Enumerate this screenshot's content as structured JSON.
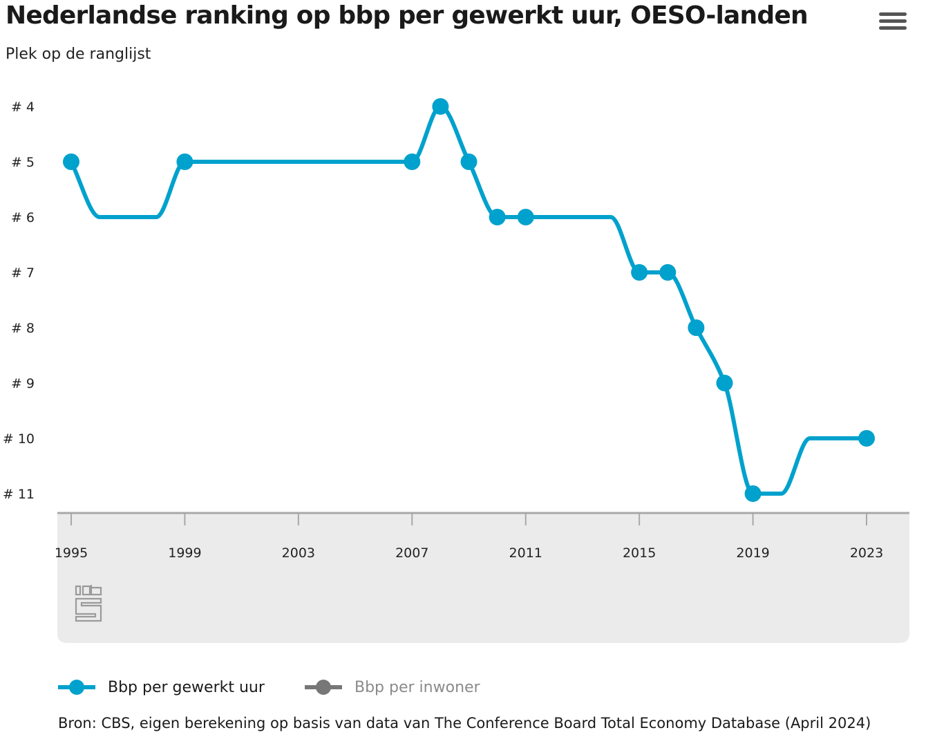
{
  "title": "Nederlandse ranking op bbp per gewerkt uur, OESO-landen",
  "menu_icon": "hamburger-menu-icon",
  "logo_icon": "cbs-logo-icon",
  "source": "Bron: CBS, eigen berekening op basis van data van The Conference Board Total Economy Database (April 2024)",
  "chart_data": {
    "type": "line",
    "title": "Nederlandse ranking op bbp per gewerkt uur, OESO-landen",
    "ylabel": "Plek op de ranglijst",
    "y_reversed": true,
    "ylim": [
      4,
      11
    ],
    "y_ticks": [
      4,
      5,
      6,
      7,
      8,
      9,
      10,
      11
    ],
    "y_tick_labels": [
      "# 4",
      "# 5",
      "# 6",
      "# 7",
      "# 8",
      "# 9",
      "# 10",
      "# 11"
    ],
    "xlim": [
      1995,
      2023
    ],
    "x_ticks": [
      1995,
      1999,
      2003,
      2007,
      2011,
      2015,
      2019,
      2023
    ],
    "x_tick_labels": [
      "1995",
      "1999",
      "2003",
      "2007",
      "2011",
      "2015",
      "2019",
      "2023"
    ],
    "grid": false,
    "legend_position": "bottom-left",
    "series": [
      {
        "name": "Bbp per gewerkt uur",
        "color": "#00a1cd",
        "visible": true,
        "x": [
          1995,
          1996,
          1997,
          1998,
          1999,
          2000,
          2001,
          2002,
          2003,
          2004,
          2005,
          2006,
          2007,
          2008,
          2009,
          2010,
          2011,
          2012,
          2013,
          2014,
          2015,
          2016,
          2017,
          2018,
          2019,
          2020,
          2021,
          2022,
          2023
        ],
        "y": [
          5,
          6,
          6,
          6,
          5,
          5,
          5,
          5,
          5,
          5,
          5,
          5,
          5,
          4,
          5,
          6,
          6,
          6,
          6,
          6,
          7,
          7,
          8,
          9,
          11,
          11,
          10,
          10,
          10
        ],
        "markers": [
          1995,
          1999,
          2007,
          2008,
          2009,
          2010,
          2011,
          2015,
          2016,
          2017,
          2018,
          2019,
          2023
        ]
      },
      {
        "name": "Bbp per inwoner",
        "color": "#666666",
        "visible": false
      }
    ]
  }
}
